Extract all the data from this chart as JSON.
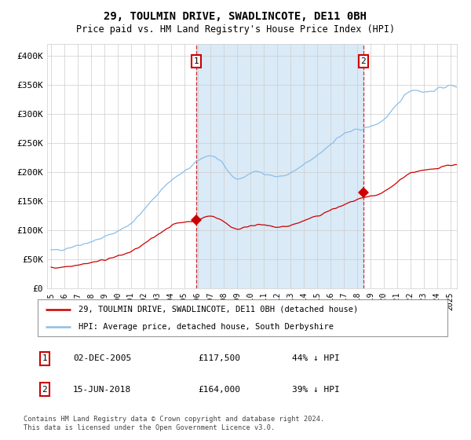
{
  "title": "29, TOULMIN DRIVE, SWADLINCOTE, DE11 0BH",
  "subtitle": "Price paid vs. HM Land Registry's House Price Index (HPI)",
  "ylabel_ticks": [
    "£0",
    "£50K",
    "£100K",
    "£150K",
    "£200K",
    "£250K",
    "£300K",
    "£350K",
    "£400K"
  ],
  "ytick_values": [
    0,
    50000,
    100000,
    150000,
    200000,
    250000,
    300000,
    350000,
    400000
  ],
  "ylim": [
    0,
    420000
  ],
  "xlim_start": 1994.7,
  "xlim_end": 2025.5,
  "hpi_color": "#8bbfe8",
  "hpi_fill_color": "#daeaf7",
  "price_color": "#cc0000",
  "sale1_date": 2005.92,
  "sale1_price": 117500,
  "sale2_date": 2018.46,
  "sale2_price": 164000,
  "legend_label1": "29, TOULMIN DRIVE, SWADLINCOTE, DE11 0BH (detached house)",
  "legend_label2": "HPI: Average price, detached house, South Derbyshire",
  "annotation1_date": "02-DEC-2005",
  "annotation1_price": "£117,500",
  "annotation1_pct": "44% ↓ HPI",
  "annotation2_date": "15-JUN-2018",
  "annotation2_price": "£164,000",
  "annotation2_pct": "39% ↓ HPI",
  "footer": "Contains HM Land Registry data © Crown copyright and database right 2024.\nThis data is licensed under the Open Government Licence v3.0.",
  "background_color": "#ffffff",
  "grid_color": "#cccccc"
}
